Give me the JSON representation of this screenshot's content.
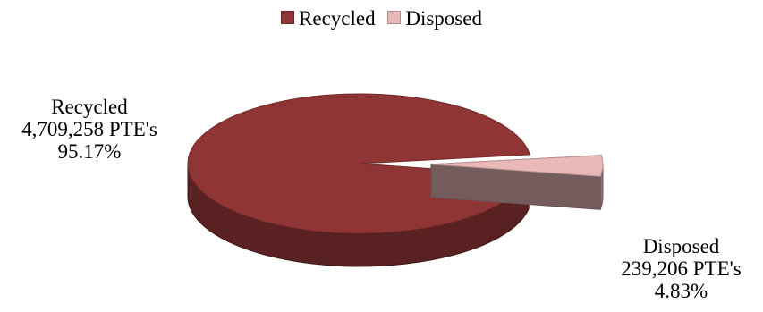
{
  "chart_data": {
    "type": "pie",
    "title": "",
    "series": [
      {
        "name": "Recycled",
        "value": 4709258,
        "value_label": "4,709,258 PTE's",
        "percent_label": "95.17%",
        "color": "#8f3535"
      },
      {
        "name": "Disposed",
        "value": 239206,
        "value_label": "239,206 PTE's",
        "percent_label": "4.83%",
        "color": "#e9b8b8"
      }
    ],
    "legend": {
      "placement": "top"
    },
    "style": {
      "three_d": true,
      "exploded_slice": "Disposed"
    }
  }
}
